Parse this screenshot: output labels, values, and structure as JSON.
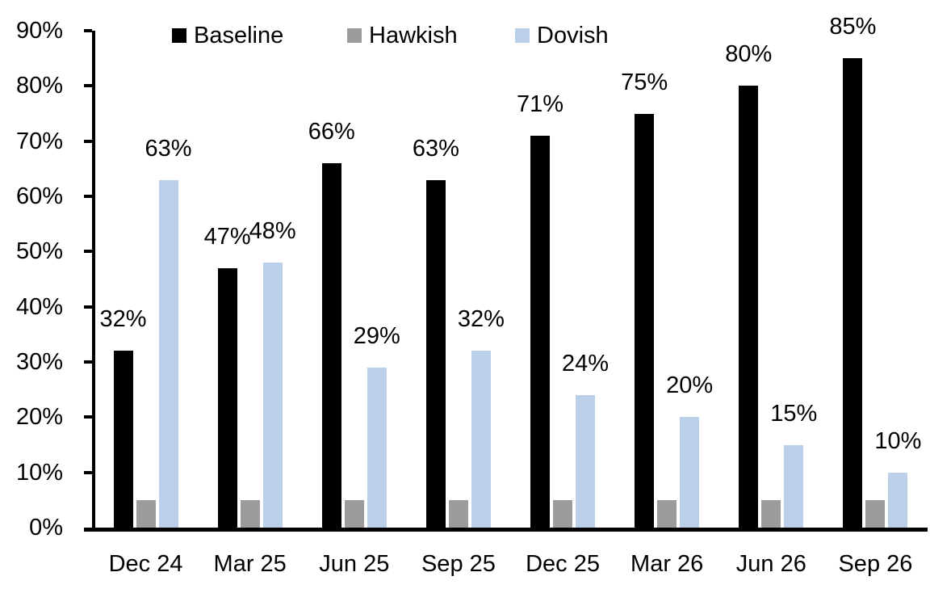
{
  "chart_data": {
    "type": "bar",
    "title": "",
    "xlabel": "",
    "ylabel": "",
    "categories": [
      "Dec 24",
      "Mar 25",
      "Jun 25",
      "Sep 25",
      "Dec 25",
      "Mar 26",
      "Jun 26",
      "Sep 26"
    ],
    "series": [
      {
        "name": "Baseline",
        "color": "#000000",
        "values": [
          32,
          47,
          66,
          63,
          71,
          75,
          80,
          85
        ],
        "data_labels": [
          "32%",
          "47%",
          "66%",
          "63%",
          "71%",
          "75%",
          "80%",
          "85%"
        ],
        "labels_visible": true
      },
      {
        "name": "Hawkish",
        "color": "#9C9C9C",
        "values": [
          5,
          5,
          5,
          5,
          5,
          5,
          5,
          5
        ],
        "data_labels": [],
        "labels_visible": false
      },
      {
        "name": "Dovish",
        "color": "#BCCFE8",
        "values": [
          63,
          48,
          29,
          32,
          24,
          20,
          15,
          10
        ],
        "data_labels": [
          "63%",
          "48%",
          "29%",
          "32%",
          "24%",
          "20%",
          "15%",
          "10%"
        ],
        "labels_visible": true
      }
    ],
    "ylim": [
      0,
      90
    ],
    "ytick_step": 10,
    "ytick_labels": [
      "0%",
      "10%",
      "20%",
      "30%",
      "40%",
      "50%",
      "60%",
      "70%",
      "80%",
      "90%"
    ],
    "legend": {
      "position": "top",
      "entries": [
        "Baseline",
        "Hawkish",
        "Dovish"
      ]
    },
    "grid": false
  }
}
